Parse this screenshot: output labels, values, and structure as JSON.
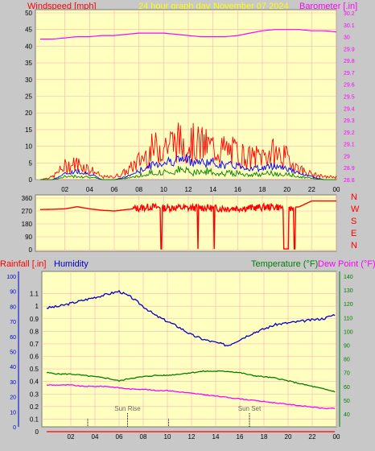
{
  "header": {
    "windspeed_label": "Windspeed [mph]",
    "graph_title": "24 hour graph day",
    "date": "November 07 2024",
    "barometer_label": "Barometer [.in]"
  },
  "colors": {
    "background": "#c8c8c8",
    "plot_bg": "#ffffc0",
    "grid": "#ffb0b0",
    "wind": "#ff0000",
    "gust": "#ff0000",
    "wind_blue": "#0000ff",
    "wind_green": "#008000",
    "barometer": "#ff00ff",
    "direction": "#ff0000",
    "rain": "#ff0000",
    "humidity": "#0000c8",
    "temperature": "#008000",
    "dewpoint": "#ff00ff"
  },
  "chart_data": [
    {
      "type": "line",
      "x_ticks": [
        "02",
        "04",
        "06",
        "08",
        "10",
        "12",
        "14",
        "16",
        "18",
        "20",
        "22",
        "00"
      ],
      "left_axis": {
        "label": "Windspeed [mph]",
        "ylim": [
          0,
          50
        ],
        "ticks": [
          "50",
          "45",
          "40",
          "35",
          "30",
          "25",
          "20",
          "15",
          "10",
          "5",
          "0"
        ]
      },
      "right_axis": {
        "label": "Barometer [.in]",
        "ylim": [
          28.8,
          30.2
        ],
        "ticks": [
          "30.2",
          "30.1",
          "30",
          "29.9",
          "29.8",
          "29.7",
          "29.6",
          "29.5",
          "29.4",
          "29.3",
          "29.2",
          "29.1",
          "29",
          "28.9",
          "28.8"
        ]
      },
      "series": [
        {
          "name": "Barometer",
          "hours": [
            0,
            1,
            2,
            3,
            4,
            5,
            6,
            7,
            8,
            9,
            10,
            11,
            12,
            13,
            14,
            15,
            16,
            17,
            18,
            19,
            20,
            21,
            22,
            23,
            24
          ],
          "values": [
            29.98,
            29.98,
            29.99,
            30.0,
            30.0,
            30.01,
            30.01,
            30.02,
            30.03,
            30.03,
            30.03,
            30.02,
            30.01,
            30.0,
            30.0,
            30.0,
            30.01,
            30.03,
            30.05,
            30.06,
            30.06,
            30.06,
            30.05,
            30.05,
            30.04
          ]
        },
        {
          "name": "Gust",
          "hours": [
            0,
            1,
            2,
            3,
            4,
            5,
            6,
            7,
            8,
            9,
            10,
            11,
            12,
            13,
            14,
            15,
            16,
            17,
            18,
            19,
            20,
            21,
            22,
            23,
            24
          ],
          "values": [
            0,
            1,
            5,
            6,
            4,
            1,
            1,
            3,
            7,
            11,
            13,
            14,
            14,
            13,
            12,
            11,
            10,
            8,
            9,
            10,
            8,
            4,
            2,
            1,
            1
          ]
        },
        {
          "name": "Average",
          "hours": [
            0,
            1,
            2,
            3,
            4,
            5,
            6,
            7,
            8,
            9,
            10,
            11,
            12,
            13,
            14,
            15,
            16,
            17,
            18,
            19,
            20,
            21,
            22,
            23,
            24
          ],
          "values": [
            0,
            0,
            2,
            3,
            2,
            0,
            0,
            1,
            3,
            5,
            6,
            7,
            7,
            6,
            6,
            5,
            5,
            4,
            4,
            5,
            4,
            2,
            1,
            0,
            0
          ]
        }
      ]
    },
    {
      "type": "line",
      "x_ticks": [
        "02",
        "04",
        "06",
        "08",
        "10",
        "12",
        "14",
        "16",
        "18",
        "20",
        "22",
        "00"
      ],
      "left_axis": {
        "ylim": [
          0,
          360
        ],
        "ticks": [
          "360",
          "270",
          "180",
          "90",
          "0"
        ]
      },
      "right_axis": {
        "ticks": [
          "N",
          "W",
          "S",
          "E",
          "N"
        ]
      },
      "series": [
        {
          "name": "Wind direction",
          "hours": [
            0,
            1,
            2,
            3,
            4,
            5,
            6,
            7,
            8,
            9,
            10,
            11,
            12,
            13,
            14,
            15,
            16,
            17,
            18,
            19,
            20,
            21,
            22,
            23,
            24
          ],
          "values": [
            280,
            282,
            285,
            300,
            285,
            275,
            270,
            280,
            290,
            300,
            290,
            295,
            290,
            295,
            290,
            288,
            290,
            292,
            295,
            300,
            290,
            300,
            340,
            340,
            340
          ]
        }
      ]
    },
    {
      "type": "line",
      "x_ticks": [
        "02",
        "04",
        "06",
        "08",
        "10",
        "12",
        "14",
        "16",
        "18",
        "20",
        "22",
        "00"
      ],
      "axes": {
        "rain": {
          "label": "Rainfall [.in]",
          "ylim": [
            0,
            1.2
          ],
          "ticks": [
            "1.1",
            "1",
            "0.9",
            "0.8",
            "0.7",
            "0.6",
            "0.5",
            "0.4",
            "0.3",
            "0.2",
            "0.1",
            "0"
          ]
        },
        "humidity": {
          "label": "Humidity",
          "ylim": [
            0,
            100
          ],
          "ticks": [
            "100",
            "90",
            "80",
            "70",
            "60",
            "50",
            "40",
            "30",
            "20",
            "10",
            "0"
          ]
        },
        "temperature": {
          "label": "Temperature (°F)",
          "ylim": [
            30,
            145
          ],
          "ticks": [
            "140",
            "130",
            "120",
            "110",
            "100",
            "90",
            "80",
            "70",
            "60",
            "50",
            "40"
          ]
        },
        "dewpoint_label": "Dew Point (°F)"
      },
      "annotations": [
        {
          "text": "Sun Rise",
          "hour": 6.7
        },
        {
          "text": "Sun Set",
          "hour": 16.8
        }
      ],
      "series": [
        {
          "name": "Humidity",
          "hours": [
            0,
            1,
            2,
            3,
            4,
            5,
            6,
            7,
            8,
            9,
            10,
            11,
            12,
            13,
            14,
            15,
            16,
            17,
            18,
            19,
            20,
            21,
            22,
            23,
            24
          ],
          "values": [
            79,
            80,
            82,
            84,
            86,
            88,
            90,
            86,
            80,
            74,
            70,
            66,
            61,
            58,
            56,
            54,
            58,
            62,
            65,
            68,
            69,
            70,
            71,
            72,
            75
          ]
        },
        {
          "name": "Temperature",
          "hours": [
            0,
            1,
            2,
            3,
            4,
            5,
            6,
            7,
            8,
            9,
            10,
            11,
            12,
            13,
            14,
            15,
            16,
            17,
            18,
            19,
            20,
            21,
            22,
            23,
            24
          ],
          "values": [
            70,
            69,
            69,
            68,
            67,
            66,
            64,
            66,
            67,
            68,
            68,
            69,
            70,
            71,
            71,
            71,
            70,
            68,
            67,
            66,
            64,
            62,
            60,
            58,
            56
          ]
        },
        {
          "name": "Dew Point",
          "hours": [
            0,
            1,
            2,
            3,
            4,
            5,
            6,
            7,
            8,
            9,
            10,
            11,
            12,
            13,
            14,
            15,
            16,
            17,
            18,
            19,
            20,
            21,
            22,
            23,
            24
          ],
          "values": [
            61,
            61,
            61,
            60,
            60,
            60,
            59,
            58,
            58,
            57,
            57,
            56,
            55,
            54,
            53,
            52,
            51,
            50,
            49,
            48,
            47,
            46,
            45,
            44,
            44
          ]
        },
        {
          "name": "Rainfall",
          "hours": [
            0,
            24
          ],
          "values": [
            0,
            0
          ]
        }
      ]
    }
  ]
}
